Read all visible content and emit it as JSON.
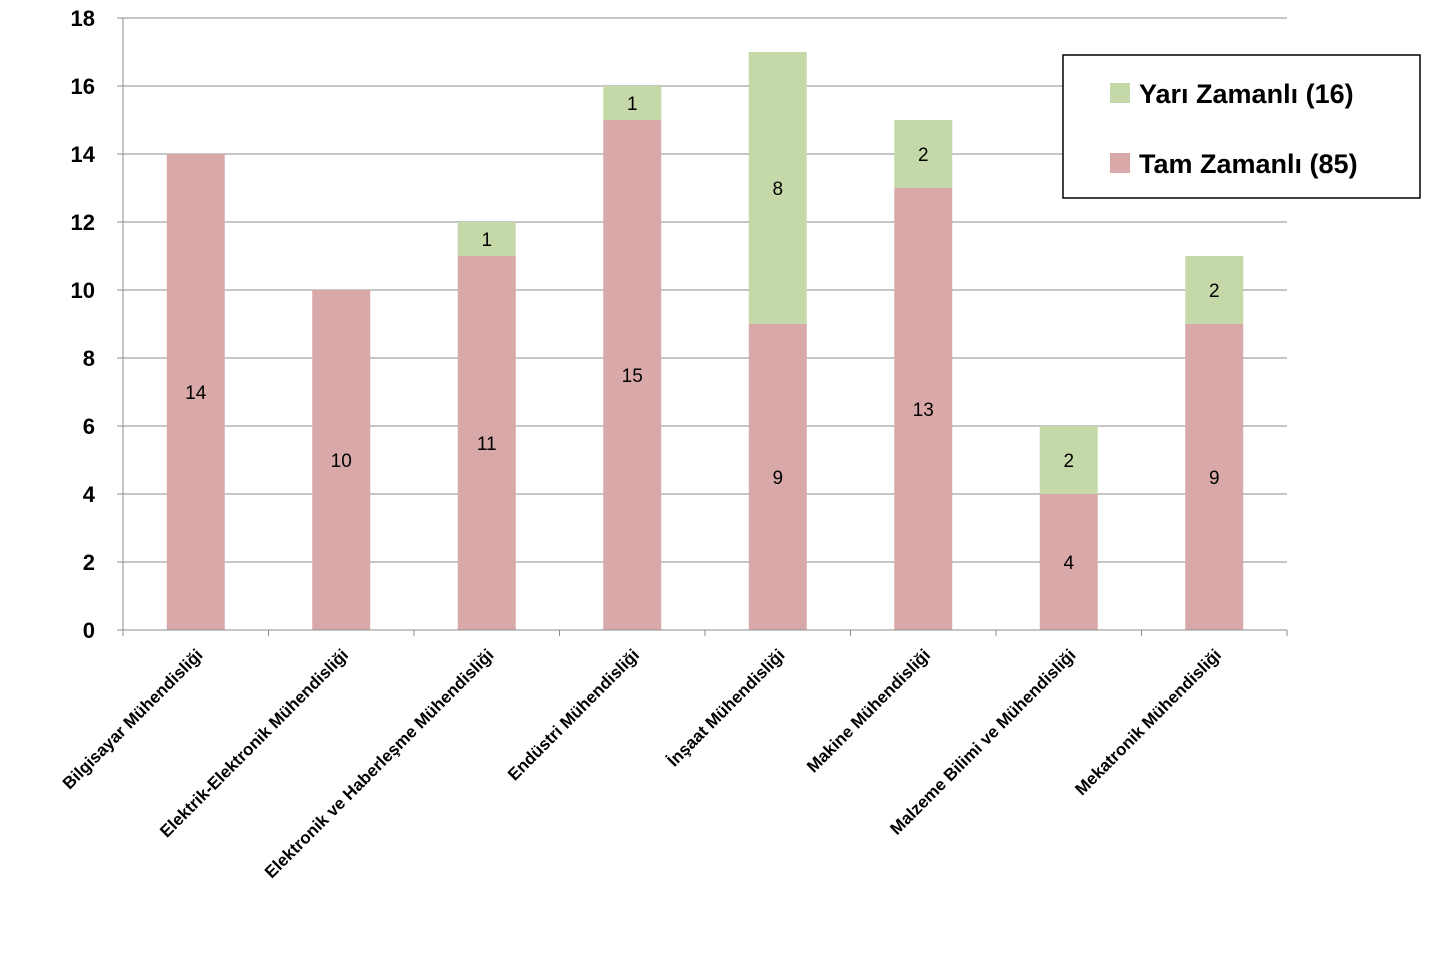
{
  "chart_data": {
    "type": "bar",
    "stacked": true,
    "categories": [
      "Bilgisayar Mühendisliği",
      "Elektrik-Elektronik Mühendisliği",
      "Elektronik ve Haberleşme Mühendisliği",
      "Endüstri Mühendisliği",
      "İnşaat Mühendisliği",
      "Makine Mühendisliği",
      "Malzeme Bilimi ve Mühendisliği",
      "Mekatronik Mühendisliği"
    ],
    "series": [
      {
        "name": "Tam Zamanlı (85)",
        "color": "#d9a9a9",
        "values": [
          14,
          10,
          11,
          15,
          9,
          13,
          4,
          9
        ]
      },
      {
        "name": "Yarı Zamanlı (16)",
        "color": "#c5d8a8",
        "values": [
          0,
          0,
          1,
          1,
          8,
          2,
          2,
          2
        ]
      }
    ],
    "ylim": [
      0,
      18
    ],
    "yticks": [
      0,
      2,
      4,
      6,
      8,
      10,
      12,
      14,
      16,
      18
    ],
    "grid": true,
    "legend_position": "top-right",
    "legend_order": [
      "Yarı Zamanlı (16)",
      "Tam Zamanlı (85)"
    ]
  }
}
